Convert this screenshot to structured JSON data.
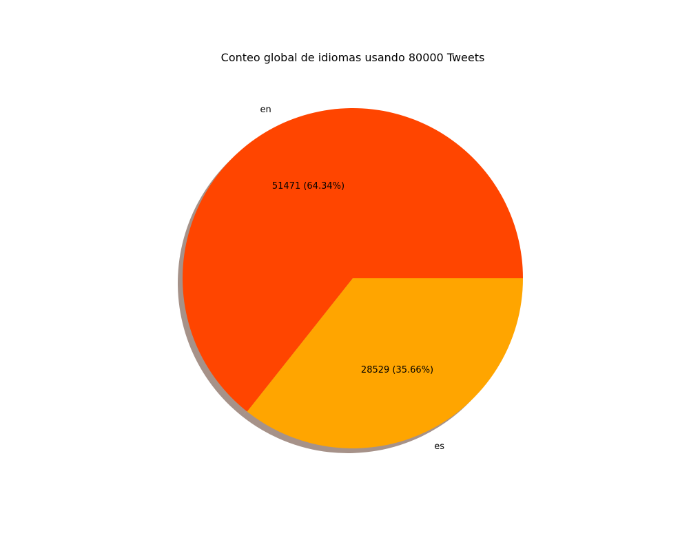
{
  "chart_data": {
    "type": "pie",
    "title": "Conteo global de idiomas usando 80000 Tweets",
    "total": 80000,
    "shadow": true,
    "slices": [
      {
        "label": "en",
        "value": 51471,
        "percent_label": "51471 (64.34%)",
        "color": "#ff4500"
      },
      {
        "label": "es",
        "value": 28529,
        "percent_label": "28529 (35.66%)",
        "color": "#ffa500"
      }
    ],
    "start_angle_deg": 0,
    "direction": "counterclockwise"
  }
}
